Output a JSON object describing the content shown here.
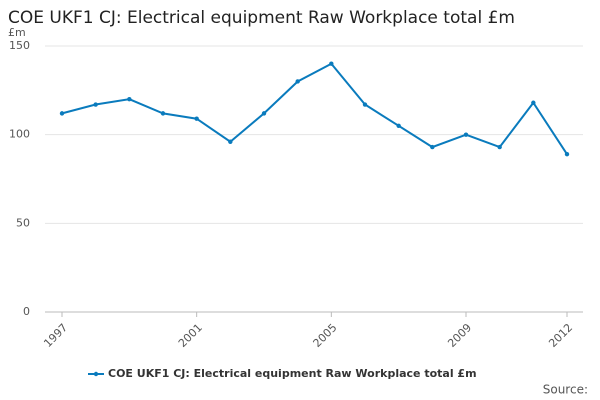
{
  "chart_data": {
    "type": "line",
    "title": "COE UKF1 CJ: Electrical equipment Raw Workplace total £m",
    "y_unit": "£m",
    "source": "Source:",
    "x": [
      1997,
      1998,
      1999,
      2000,
      2001,
      2002,
      2003,
      2004,
      2005,
      2006,
      2007,
      2008,
      2009,
      2010,
      2011,
      2012
    ],
    "series": [
      {
        "name": "COE UKF1 CJ: Electrical equipment Raw Workplace total £m",
        "color": "#0a7bbd",
        "values": [
          112,
          117,
          120,
          112,
          109,
          96,
          112,
          130,
          140,
          117,
          105,
          93,
          100,
          93,
          118,
          89
        ]
      }
    ],
    "xlim": [
      1997,
      2012
    ],
    "xticks": [
      1997,
      2001,
      2005,
      2009,
      2012
    ],
    "ylim": [
      0,
      150
    ],
    "yticks": [
      0,
      50,
      100,
      150
    ],
    "grid": true
  }
}
